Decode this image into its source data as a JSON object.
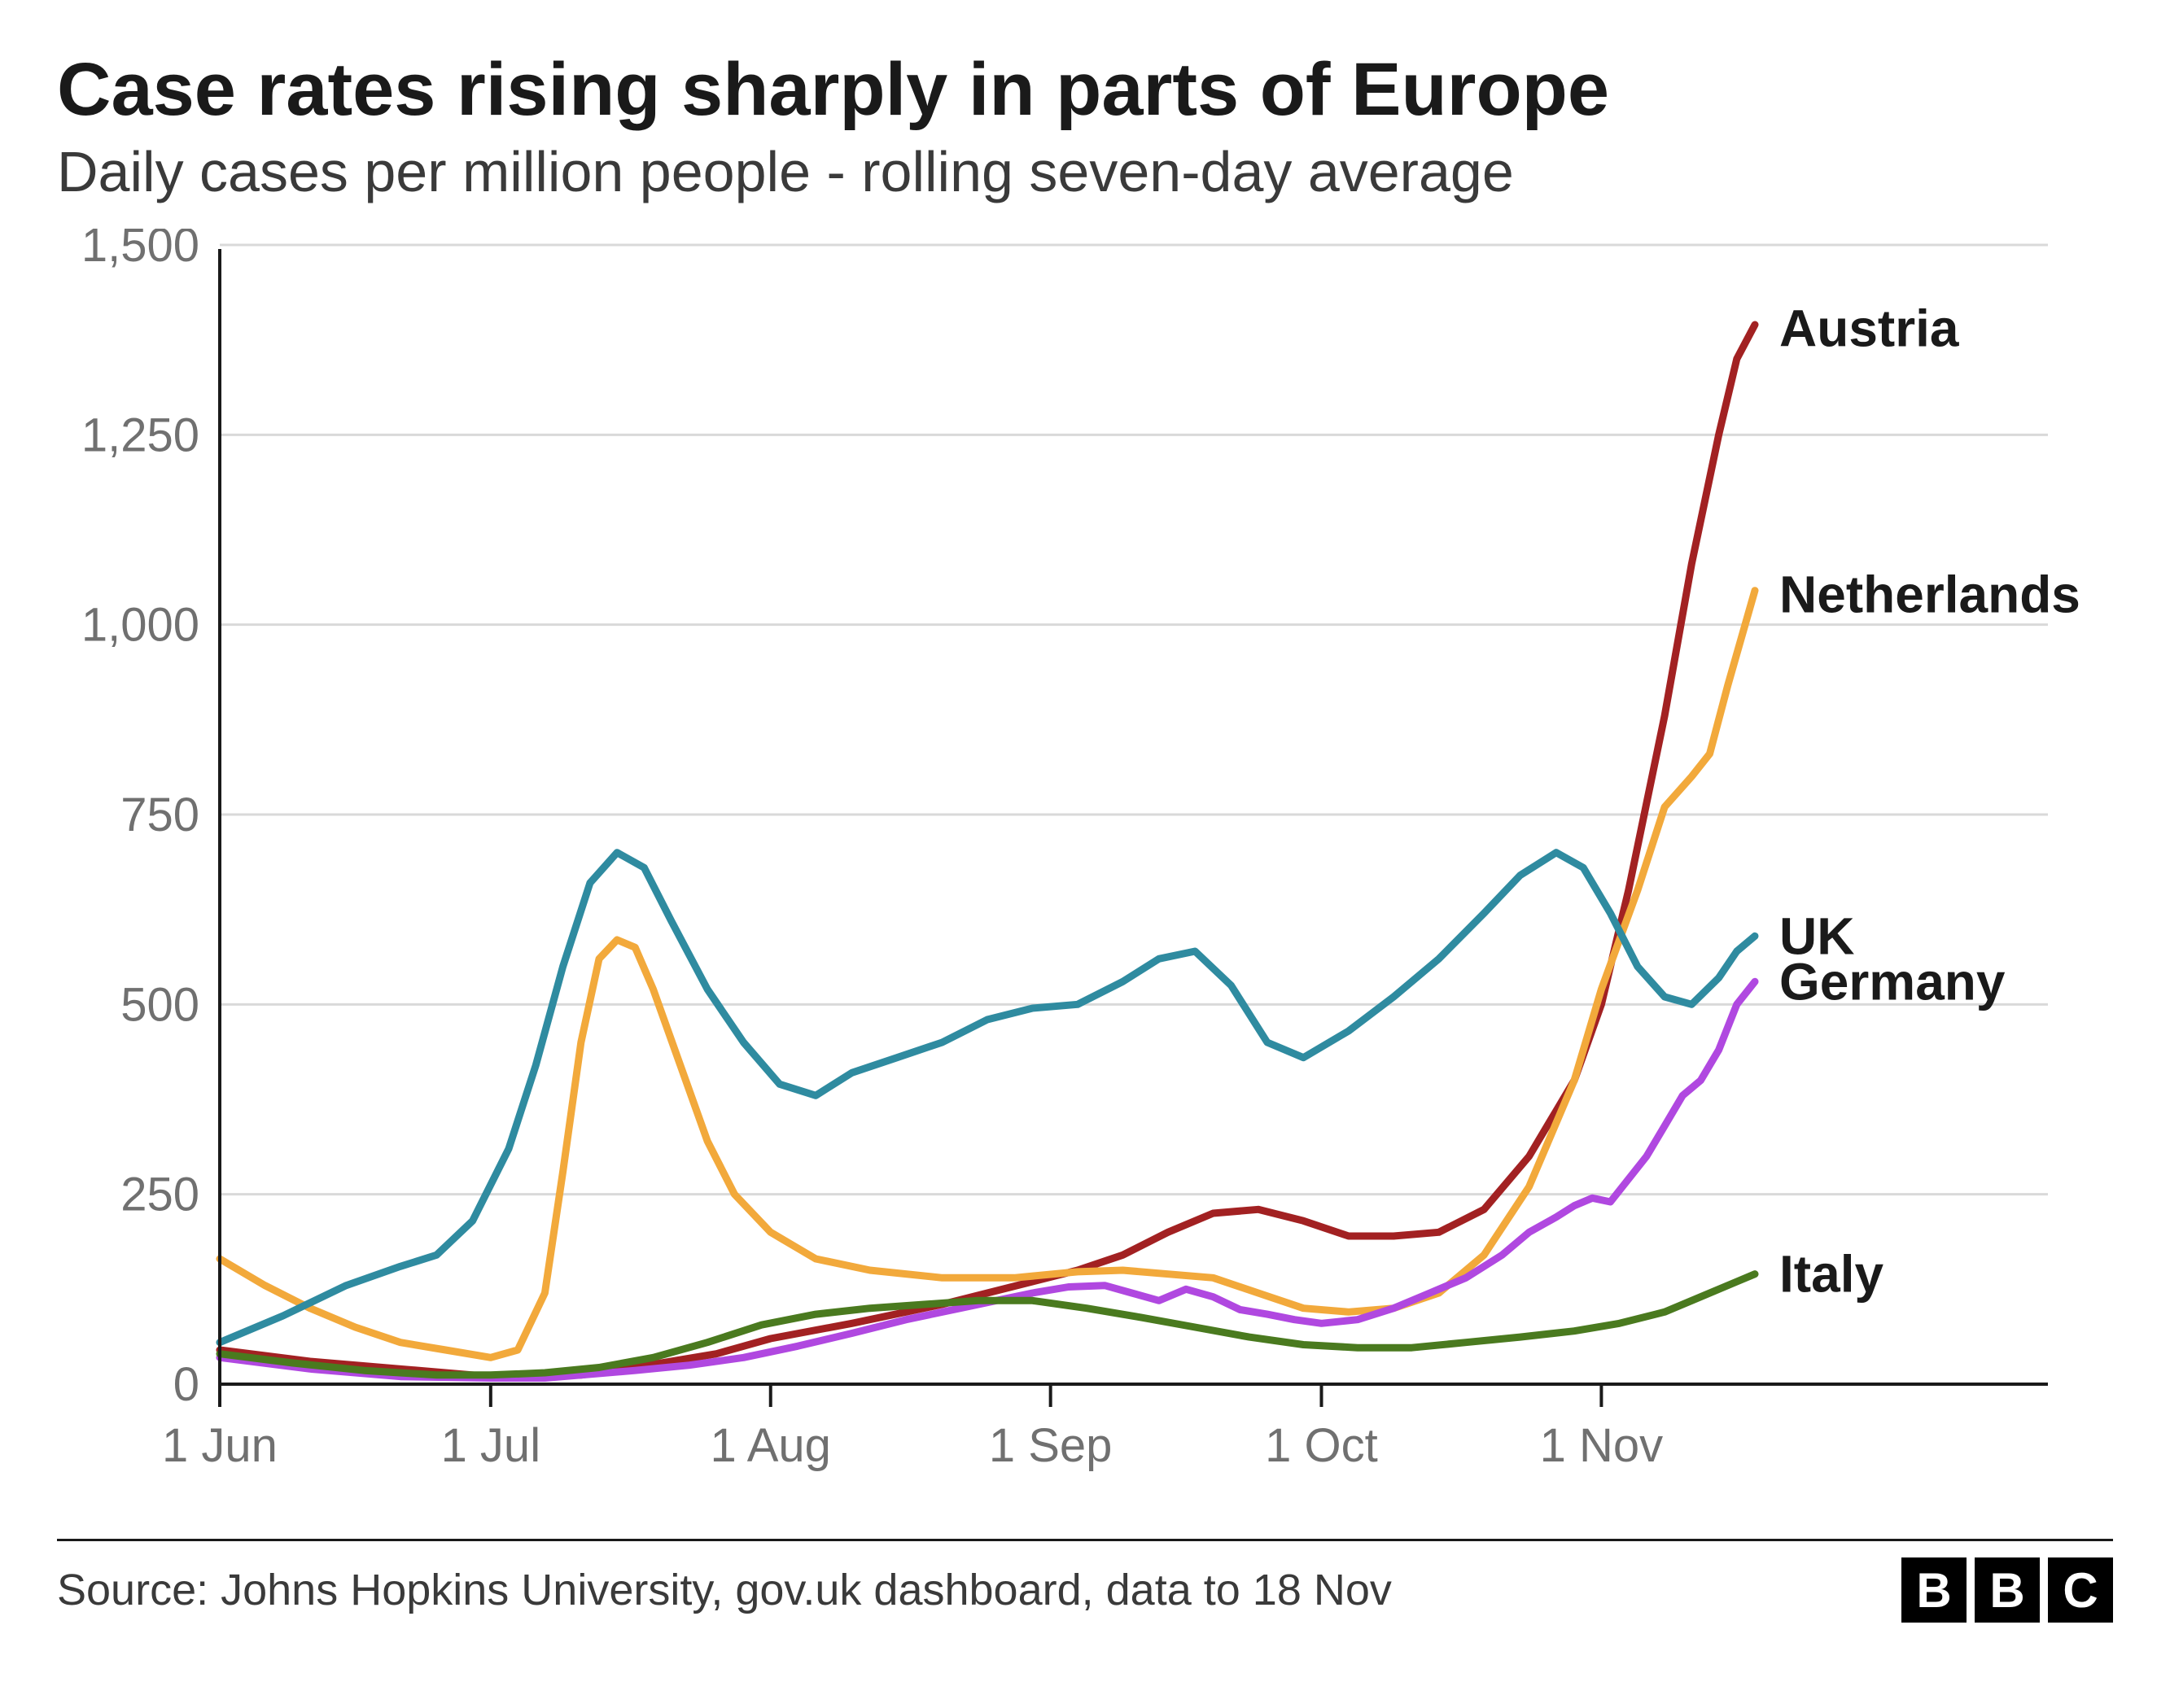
{
  "chart": {
    "type": "line",
    "title": "Case rates rising sharply in parts of Europe",
    "subtitle": "Daily cases per million people - rolling seven-day average",
    "title_fontsize": 92,
    "subtitle_fontsize": 70,
    "background_color": "#ffffff",
    "grid_color": "#d9d9d9",
    "axis_color": "#1a1a1a",
    "tick_label_color": "#707070",
    "series_line_width": 9,
    "ylim": [
      0,
      1500
    ],
    "ytick_step": 250,
    "y_ticks": [
      {
        "v": 0,
        "label": "0"
      },
      {
        "v": 250,
        "label": "250"
      },
      {
        "v": 500,
        "label": "500"
      },
      {
        "v": 750,
        "label": "750"
      },
      {
        "v": 1000,
        "label": "1,000"
      },
      {
        "v": 1250,
        "label": "1,250"
      },
      {
        "v": 1500,
        "label": "1,500"
      }
    ],
    "x_start": "2021-06-01",
    "x_end": "2021-11-18",
    "x_days": 170,
    "x_ticks": [
      {
        "d": 0,
        "label": "1 Jun"
      },
      {
        "d": 30,
        "label": "1 Jul"
      },
      {
        "d": 61,
        "label": "1 Aug"
      },
      {
        "d": 92,
        "label": "1 Sep"
      },
      {
        "d": 122,
        "label": "1 Oct"
      },
      {
        "d": 153,
        "label": "1 Nov"
      }
    ],
    "series": [
      {
        "name": "Austria",
        "label": "Austria",
        "color": "#a22122",
        "end_label_y": 1390,
        "data": [
          [
            0,
            45
          ],
          [
            10,
            30
          ],
          [
            20,
            20
          ],
          [
            30,
            10
          ],
          [
            35,
            10
          ],
          [
            40,
            12
          ],
          [
            45,
            20
          ],
          [
            50,
            30
          ],
          [
            55,
            40
          ],
          [
            61,
            60
          ],
          [
            70,
            80
          ],
          [
            80,
            105
          ],
          [
            90,
            135
          ],
          [
            95,
            150
          ],
          [
            100,
            170
          ],
          [
            105,
            200
          ],
          [
            110,
            225
          ],
          [
            115,
            230
          ],
          [
            120,
            215
          ],
          [
            125,
            195
          ],
          [
            130,
            195
          ],
          [
            135,
            200
          ],
          [
            140,
            230
          ],
          [
            145,
            300
          ],
          [
            150,
            400
          ],
          [
            153,
            500
          ],
          [
            156,
            650
          ],
          [
            160,
            880
          ],
          [
            163,
            1080
          ],
          [
            166,
            1250
          ],
          [
            168,
            1350
          ],
          [
            170,
            1395
          ]
        ]
      },
      {
        "name": "Netherlands",
        "label": "Netherlands",
        "color": "#f2a93b",
        "end_label_y": 1040,
        "data": [
          [
            0,
            165
          ],
          [
            5,
            130
          ],
          [
            10,
            100
          ],
          [
            15,
            75
          ],
          [
            20,
            55
          ],
          [
            25,
            45
          ],
          [
            30,
            35
          ],
          [
            33,
            45
          ],
          [
            36,
            120
          ],
          [
            38,
            280
          ],
          [
            40,
            450
          ],
          [
            42,
            560
          ],
          [
            44,
            585
          ],
          [
            46,
            575
          ],
          [
            48,
            520
          ],
          [
            51,
            420
          ],
          [
            54,
            320
          ],
          [
            57,
            250
          ],
          [
            61,
            200
          ],
          [
            66,
            165
          ],
          [
            72,
            150
          ],
          [
            80,
            140
          ],
          [
            88,
            140
          ],
          [
            95,
            148
          ],
          [
            100,
            150
          ],
          [
            105,
            145
          ],
          [
            110,
            140
          ],
          [
            115,
            120
          ],
          [
            120,
            100
          ],
          [
            125,
            95
          ],
          [
            130,
            100
          ],
          [
            135,
            120
          ],
          [
            140,
            170
          ],
          [
            145,
            260
          ],
          [
            150,
            400
          ],
          [
            153,
            520
          ],
          [
            157,
            650
          ],
          [
            160,
            760
          ],
          [
            163,
            800
          ],
          [
            165,
            830
          ],
          [
            167,
            920
          ],
          [
            170,
            1045
          ]
        ]
      },
      {
        "name": "UK",
        "label": "UK",
        "color": "#2f8ba0",
        "end_label_y": 590,
        "data": [
          [
            0,
            55
          ],
          [
            7,
            90
          ],
          [
            14,
            130
          ],
          [
            20,
            155
          ],
          [
            24,
            170
          ],
          [
            28,
            215
          ],
          [
            32,
            310
          ],
          [
            35,
            420
          ],
          [
            38,
            550
          ],
          [
            41,
            660
          ],
          [
            44,
            700
          ],
          [
            47,
            680
          ],
          [
            50,
            610
          ],
          [
            54,
            520
          ],
          [
            58,
            450
          ],
          [
            62,
            395
          ],
          [
            66,
            380
          ],
          [
            70,
            410
          ],
          [
            75,
            430
          ],
          [
            80,
            450
          ],
          [
            85,
            480
          ],
          [
            90,
            495
          ],
          [
            95,
            500
          ],
          [
            100,
            530
          ],
          [
            104,
            560
          ],
          [
            108,
            570
          ],
          [
            112,
            525
          ],
          [
            116,
            450
          ],
          [
            120,
            430
          ],
          [
            125,
            465
          ],
          [
            130,
            510
          ],
          [
            135,
            560
          ],
          [
            140,
            620
          ],
          [
            144,
            670
          ],
          [
            148,
            700
          ],
          [
            151,
            680
          ],
          [
            154,
            620
          ],
          [
            157,
            550
          ],
          [
            160,
            510
          ],
          [
            163,
            500
          ],
          [
            166,
            535
          ],
          [
            168,
            570
          ],
          [
            170,
            590
          ]
        ]
      },
      {
        "name": "Germany",
        "label": "Germany",
        "color": "#b048e0",
        "end_label_y": 530,
        "data": [
          [
            0,
            35
          ],
          [
            10,
            20
          ],
          [
            20,
            10
          ],
          [
            30,
            8
          ],
          [
            36,
            8
          ],
          [
            40,
            12
          ],
          [
            46,
            18
          ],
          [
            52,
            25
          ],
          [
            58,
            35
          ],
          [
            64,
            50
          ],
          [
            70,
            67
          ],
          [
            76,
            85
          ],
          [
            82,
            100
          ],
          [
            86,
            110
          ],
          [
            90,
            120
          ],
          [
            94,
            128
          ],
          [
            98,
            130
          ],
          [
            101,
            120
          ],
          [
            104,
            110
          ],
          [
            107,
            125
          ],
          [
            110,
            115
          ],
          [
            113,
            98
          ],
          [
            116,
            92
          ],
          [
            119,
            85
          ],
          [
            122,
            80
          ],
          [
            126,
            85
          ],
          [
            130,
            100
          ],
          [
            134,
            120
          ],
          [
            138,
            140
          ],
          [
            142,
            170
          ],
          [
            145,
            200
          ],
          [
            148,
            220
          ],
          [
            150,
            235
          ],
          [
            152,
            245
          ],
          [
            154,
            240
          ],
          [
            156,
            270
          ],
          [
            158,
            300
          ],
          [
            160,
            340
          ],
          [
            162,
            380
          ],
          [
            164,
            400
          ],
          [
            166,
            440
          ],
          [
            168,
            500
          ],
          [
            170,
            530
          ]
        ]
      },
      {
        "name": "Italy",
        "label": "Italy",
        "color": "#4a7a1f",
        "end_label_y": 145,
        "data": [
          [
            0,
            40
          ],
          [
            8,
            28
          ],
          [
            16,
            18
          ],
          [
            24,
            12
          ],
          [
            30,
            12
          ],
          [
            36,
            15
          ],
          [
            42,
            22
          ],
          [
            48,
            35
          ],
          [
            54,
            55
          ],
          [
            60,
            78
          ],
          [
            66,
            92
          ],
          [
            72,
            100
          ],
          [
            78,
            105
          ],
          [
            84,
            110
          ],
          [
            90,
            110
          ],
          [
            96,
            100
          ],
          [
            102,
            88
          ],
          [
            108,
            75
          ],
          [
            114,
            62
          ],
          [
            120,
            52
          ],
          [
            126,
            48
          ],
          [
            132,
            48
          ],
          [
            138,
            55
          ],
          [
            144,
            62
          ],
          [
            150,
            70
          ],
          [
            155,
            80
          ],
          [
            160,
            95
          ],
          [
            164,
            115
          ],
          [
            168,
            135
          ],
          [
            170,
            145
          ]
        ]
      }
    ]
  },
  "footer": {
    "source_text": "Source: Johns Hopkins University, gov.uk dashboard, data to 18 Nov",
    "logo_letters": [
      "B",
      "B",
      "C"
    ],
    "logo_bg": "#000000",
    "logo_fg": "#ffffff"
  }
}
